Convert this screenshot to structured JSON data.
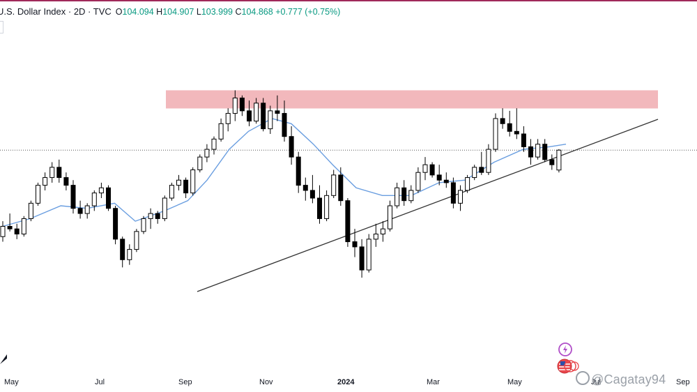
{
  "header": {
    "symbol": "U.S. Dollar Index · 2D · TVC",
    "open_label": "O",
    "open": "104.094",
    "high_label": "H",
    "high": "104.907",
    "low_label": "L",
    "low": "103.999",
    "close_label": "C",
    "close": "104.868",
    "change": "+0.777 (+0.75%)"
  },
  "x_axis": [
    "May",
    "Jul",
    "Sep",
    "Nov",
    "2024",
    "Mar",
    "May",
    "Jul",
    "Sep"
  ],
  "watermark": "@Cagatay94",
  "icons": [
    "tradingview-logo-icon",
    "lightning-icon",
    "us-flag-icon"
  ],
  "colors": {
    "up_candle": "#ffffff",
    "down_candle": "#000000",
    "candle_outline": "#000000",
    "moving_average": "#6a9ee0",
    "resistance_zone": "#f2b8bc",
    "trendline": "#333333",
    "price_line": "#555555"
  },
  "chart_data": {
    "type": "candlestick",
    "title": "U.S. Dollar Index · 2D · TVC",
    "timeframe": "2D",
    "xlabel": "",
    "ylabel": "",
    "grid": false,
    "resistance_zone": {
      "from": 106.9,
      "to": 107.2,
      "start": "2023-09",
      "end": "2024-08"
    },
    "trendline": {
      "from": {
        "date": "2023-09",
        "value": 99.6
      },
      "to": {
        "date": "2024-08",
        "value": 106.6
      }
    },
    "current_price_line": 104.868,
    "moving_average": [
      {
        "date": "2023-04-20",
        "value": 101.9
      },
      {
        "date": "2023-05-10",
        "value": 102.2
      },
      {
        "date": "2023-06-01",
        "value": 102.7
      },
      {
        "date": "2023-06-20",
        "value": 102.6
      },
      {
        "date": "2023-07-10",
        "value": 102.8
      },
      {
        "date": "2023-07-25",
        "value": 102.1
      },
      {
        "date": "2023-08-15",
        "value": 102.5
      },
      {
        "date": "2023-09-01",
        "value": 102.9
      },
      {
        "date": "2023-09-15",
        "value": 103.7
      },
      {
        "date": "2023-10-01",
        "value": 104.9
      },
      {
        "date": "2023-10-15",
        "value": 105.6
      },
      {
        "date": "2023-11-01",
        "value": 106.1
      },
      {
        "date": "2023-11-15",
        "value": 105.9
      },
      {
        "date": "2023-12-01",
        "value": 105.1
      },
      {
        "date": "2023-12-15",
        "value": 104.3
      },
      {
        "date": "2024-01-01",
        "value": 103.4
      },
      {
        "date": "2024-01-20",
        "value": 103.1
      },
      {
        "date": "2024-02-10",
        "value": 103.1
      },
      {
        "date": "2024-03-01",
        "value": 103.6
      },
      {
        "date": "2024-03-20",
        "value": 103.7
      },
      {
        "date": "2024-04-10",
        "value": 104.4
      },
      {
        "date": "2024-05-01",
        "value": 104.9
      },
      {
        "date": "2024-05-20",
        "value": 105.0
      },
      {
        "date": "2024-06-01",
        "value": 105.1
      }
    ],
    "candles": [
      {
        "o": 101.5,
        "h": 102.1,
        "l": 101.3,
        "c": 101.9
      },
      {
        "o": 101.9,
        "h": 102.4,
        "l": 101.7,
        "c": 101.8
      },
      {
        "o": 101.8,
        "h": 102.0,
        "l": 101.4,
        "c": 101.6
      },
      {
        "o": 101.6,
        "h": 102.3,
        "l": 101.5,
        "c": 102.2
      },
      {
        "o": 102.2,
        "h": 102.9,
        "l": 102.1,
        "c": 102.8
      },
      {
        "o": 102.8,
        "h": 103.6,
        "l": 102.7,
        "c": 103.5
      },
      {
        "o": 103.5,
        "h": 104.0,
        "l": 103.3,
        "c": 103.8
      },
      {
        "o": 103.8,
        "h": 104.4,
        "l": 103.6,
        "c": 104.2
      },
      {
        "o": 104.2,
        "h": 104.5,
        "l": 103.6,
        "c": 103.8
      },
      {
        "o": 103.8,
        "h": 104.0,
        "l": 103.3,
        "c": 103.5
      },
      {
        "o": 103.5,
        "h": 103.7,
        "l": 102.4,
        "c": 102.6
      },
      {
        "o": 102.6,
        "h": 102.9,
        "l": 102.2,
        "c": 102.4
      },
      {
        "o": 102.4,
        "h": 102.8,
        "l": 102.2,
        "c": 102.7
      },
      {
        "o": 102.7,
        "h": 103.3,
        "l": 102.5,
        "c": 103.2
      },
      {
        "o": 103.2,
        "h": 103.6,
        "l": 103.0,
        "c": 103.4
      },
      {
        "o": 103.4,
        "h": 103.5,
        "l": 102.5,
        "c": 102.6
      },
      {
        "o": 102.6,
        "h": 102.7,
        "l": 101.2,
        "c": 101.4
      },
      {
        "o": 101.4,
        "h": 101.5,
        "l": 100.3,
        "c": 100.6
      },
      {
        "o": 100.6,
        "h": 101.2,
        "l": 100.4,
        "c": 101.0
      },
      {
        "o": 101.0,
        "h": 101.8,
        "l": 100.9,
        "c": 101.7
      },
      {
        "o": 101.7,
        "h": 102.3,
        "l": 101.6,
        "c": 102.2
      },
      {
        "o": 102.2,
        "h": 102.6,
        "l": 101.8,
        "c": 102.4
      },
      {
        "o": 102.4,
        "h": 102.5,
        "l": 102.0,
        "c": 102.2
      },
      {
        "o": 102.2,
        "h": 103.1,
        "l": 102.1,
        "c": 103.0
      },
      {
        "o": 103.0,
        "h": 103.6,
        "l": 102.9,
        "c": 103.5
      },
      {
        "o": 103.5,
        "h": 103.9,
        "l": 103.3,
        "c": 103.7
      },
      {
        "o": 103.7,
        "h": 103.8,
        "l": 103.0,
        "c": 103.2
      },
      {
        "o": 103.2,
        "h": 104.2,
        "l": 103.1,
        "c": 104.1
      },
      {
        "o": 104.1,
        "h": 104.7,
        "l": 104.0,
        "c": 104.6
      },
      {
        "o": 104.6,
        "h": 105.1,
        "l": 104.4,
        "c": 104.9
      },
      {
        "o": 104.9,
        "h": 105.4,
        "l": 104.7,
        "c": 105.3
      },
      {
        "o": 105.3,
        "h": 106.1,
        "l": 105.2,
        "c": 105.9
      },
      {
        "o": 105.9,
        "h": 106.5,
        "l": 105.6,
        "c": 106.3
      },
      {
        "o": 106.3,
        "h": 107.2,
        "l": 106.0,
        "c": 106.9
      },
      {
        "o": 106.9,
        "h": 107.0,
        "l": 106.2,
        "c": 106.4
      },
      {
        "o": 106.4,
        "h": 106.8,
        "l": 105.8,
        "c": 106.0
      },
      {
        "o": 106.0,
        "h": 106.9,
        "l": 105.9,
        "c": 106.7
      },
      {
        "o": 106.7,
        "h": 106.9,
        "l": 105.6,
        "c": 105.7
      },
      {
        "o": 105.7,
        "h": 106.6,
        "l": 105.5,
        "c": 106.4
      },
      {
        "o": 106.4,
        "h": 107.0,
        "l": 106.0,
        "c": 106.3
      },
      {
        "o": 106.3,
        "h": 106.8,
        "l": 105.2,
        "c": 105.4
      },
      {
        "o": 105.4,
        "h": 105.8,
        "l": 104.3,
        "c": 104.6
      },
      {
        "o": 104.6,
        "h": 104.8,
        "l": 103.2,
        "c": 103.5
      },
      {
        "o": 103.5,
        "h": 103.8,
        "l": 102.9,
        "c": 103.3
      },
      {
        "o": 103.3,
        "h": 103.9,
        "l": 102.8,
        "c": 103.0
      },
      {
        "o": 103.0,
        "h": 103.5,
        "l": 102.0,
        "c": 102.2
      },
      {
        "o": 102.2,
        "h": 103.3,
        "l": 102.1,
        "c": 103.1
      },
      {
        "o": 103.1,
        "h": 104.1,
        "l": 103.0,
        "c": 103.9
      },
      {
        "o": 103.9,
        "h": 104.2,
        "l": 102.7,
        "c": 102.9
      },
      {
        "o": 102.9,
        "h": 103.0,
        "l": 101.1,
        "c": 101.3
      },
      {
        "o": 101.3,
        "h": 101.8,
        "l": 100.7,
        "c": 101.1
      },
      {
        "o": 101.1,
        "h": 101.4,
        "l": 99.9,
        "c": 100.2
      },
      {
        "o": 100.2,
        "h": 101.6,
        "l": 100.1,
        "c": 101.4
      },
      {
        "o": 101.4,
        "h": 102.0,
        "l": 101.1,
        "c": 101.6
      },
      {
        "o": 101.6,
        "h": 102.1,
        "l": 101.3,
        "c": 101.8
      },
      {
        "o": 101.8,
        "h": 102.9,
        "l": 101.7,
        "c": 102.7
      },
      {
        "o": 102.7,
        "h": 103.6,
        "l": 102.6,
        "c": 103.4
      },
      {
        "o": 103.4,
        "h": 103.7,
        "l": 102.7,
        "c": 102.9
      },
      {
        "o": 102.9,
        "h": 103.5,
        "l": 102.8,
        "c": 103.3
      },
      {
        "o": 103.3,
        "h": 104.2,
        "l": 103.2,
        "c": 104.0
      },
      {
        "o": 104.0,
        "h": 104.6,
        "l": 103.7,
        "c": 104.3
      },
      {
        "o": 104.3,
        "h": 104.4,
        "l": 103.8,
        "c": 103.9
      },
      {
        "o": 103.9,
        "h": 104.3,
        "l": 103.5,
        "c": 103.7
      },
      {
        "o": 103.7,
        "h": 104.0,
        "l": 103.4,
        "c": 103.6
      },
      {
        "o": 103.6,
        "h": 103.8,
        "l": 102.6,
        "c": 102.8
      },
      {
        "o": 102.8,
        "h": 103.5,
        "l": 102.5,
        "c": 103.3
      },
      {
        "o": 103.3,
        "h": 103.9,
        "l": 103.2,
        "c": 103.8
      },
      {
        "o": 103.8,
        "h": 104.3,
        "l": 103.7,
        "c": 104.2
      },
      {
        "o": 104.2,
        "h": 104.8,
        "l": 103.9,
        "c": 104.0
      },
      {
        "o": 104.0,
        "h": 105.1,
        "l": 103.9,
        "c": 104.9
      },
      {
        "o": 104.9,
        "h": 106.3,
        "l": 104.8,
        "c": 106.1
      },
      {
        "o": 106.1,
        "h": 106.5,
        "l": 105.7,
        "c": 105.9
      },
      {
        "o": 105.9,
        "h": 106.4,
        "l": 105.4,
        "c": 105.6
      },
      {
        "o": 105.6,
        "h": 106.5,
        "l": 105.3,
        "c": 105.5
      },
      {
        "o": 105.5,
        "h": 105.8,
        "l": 104.8,
        "c": 105.0
      },
      {
        "o": 105.0,
        "h": 105.3,
        "l": 104.3,
        "c": 104.6
      },
      {
        "o": 104.6,
        "h": 105.3,
        "l": 104.5,
        "c": 105.1
      },
      {
        "o": 105.1,
        "h": 105.3,
        "l": 104.4,
        "c": 104.5
      },
      {
        "o": 104.5,
        "h": 104.7,
        "l": 104.1,
        "c": 104.3
      },
      {
        "o": 104.094,
        "h": 104.907,
        "l": 103.999,
        "c": 104.868
      }
    ]
  }
}
